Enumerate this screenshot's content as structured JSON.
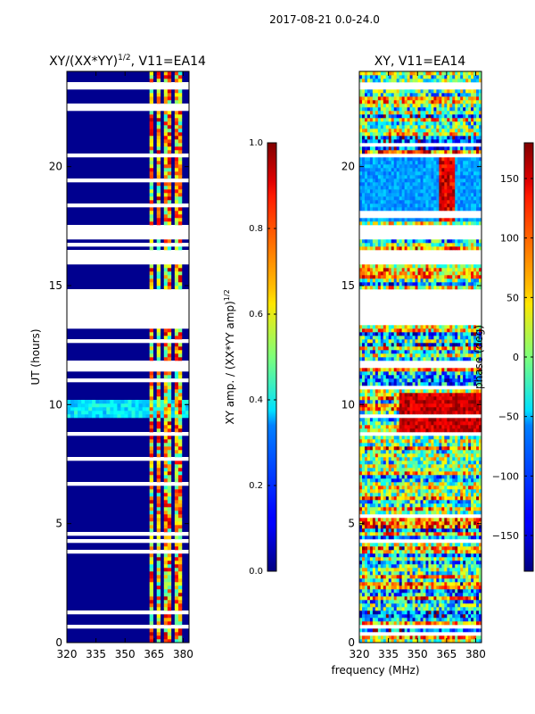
{
  "suptitle": "2017-08-21 0.0-24.0",
  "chart_data": [
    {
      "type": "heatmap",
      "title_base": "XY/(XX*YY)",
      "title_sup": "1/2",
      "title_tail": ", V11=EA14",
      "ylabel": "UT (hours)",
      "xlabel": "",
      "xlim": [
        320,
        383
      ],
      "ylim": [
        0,
        24
      ],
      "xticks": [
        320,
        335,
        350,
        365,
        380
      ],
      "yticks": [
        0,
        5,
        10,
        15,
        20
      ],
      "colormap": "jet",
      "colorbar": {
        "label_base": "XY amp. / (XX*YY amp)",
        "label_sup": "1/2",
        "range": [
          0.0,
          1.0
        ],
        "ticks": [
          "0.0",
          "0.2",
          "0.4",
          "0.6",
          "0.8",
          "1.0"
        ]
      },
      "flagged_gaps_hours": [
        [
          15.9,
          16.5
        ],
        [
          16.9,
          17.6
        ],
        [
          13.4,
          14.8
        ],
        [
          11.6,
          11.9
        ],
        [
          20.4,
          20.6
        ],
        [
          23.3,
          23.5
        ]
      ],
      "rfi_channels_mhz": [
        [
          362,
          365
        ],
        [
          366,
          369
        ],
        [
          370,
          373
        ],
        [
          375,
          377
        ],
        [
          378,
          380
        ]
      ]
    },
    {
      "type": "heatmap",
      "title": "XY, V11=EA14",
      "ylabel": "",
      "xlabel": "frequency (MHz)",
      "xlim": [
        320,
        383
      ],
      "ylim": [
        0,
        24
      ],
      "xticks": [
        320,
        335,
        350,
        365,
        380
      ],
      "yticks": [
        0,
        5,
        10,
        15,
        20
      ],
      "colormap": "jet",
      "colorbar": {
        "label": "phase (deg)",
        "range": [
          -180,
          180
        ],
        "ticks": [
          "−150",
          "−100",
          "−50",
          "0",
          "50",
          "100",
          "150"
        ]
      }
    }
  ]
}
